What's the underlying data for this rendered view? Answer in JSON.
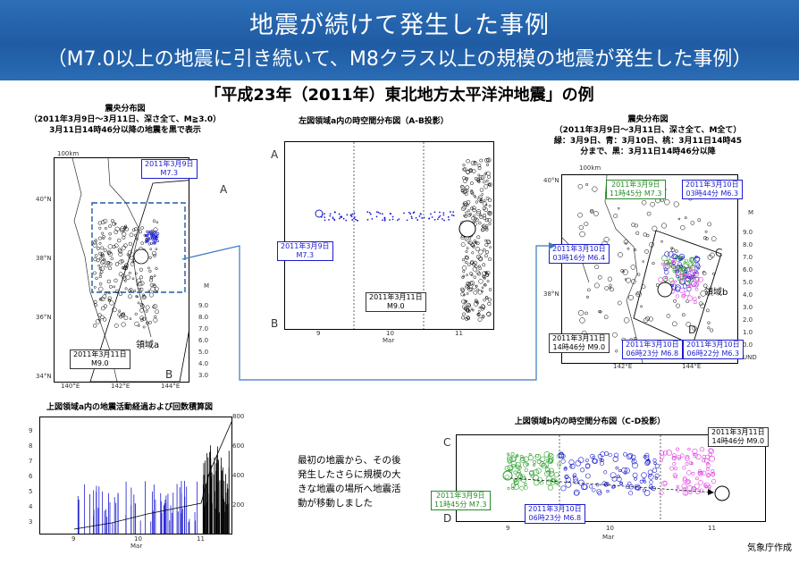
{
  "header": {
    "title": "地震が続けて発生した事例",
    "subtitle": "（M7.0以上の地震に引き続いて、M8クラス以上の規模の地震が発生した事例）"
  },
  "event_title": "「平成23年（2011年）東北地方太平洋沖地震」の例",
  "map_left": {
    "caption_line1": "震央分布図",
    "caption_line2": "（2011年3月9日～3月11日、深さ全て、M≧3.0）",
    "caption_line3": "3月11日14時46分以降の地震を黒で表示",
    "scale": "100km",
    "lat_ticks": [
      "40°N",
      "38°N",
      "36°N",
      "34°N"
    ],
    "lon_ticks": [
      "140°E",
      "142°E",
      "144°E"
    ],
    "label_m73_date": "2011年3月9日",
    "label_m73_mag": "M7.3",
    "label_m90_date": "2011年3月11日",
    "label_m90_mag": "M9.0",
    "region_label": "領域a",
    "point_a": "A",
    "point_b": "B",
    "mag_legend_title": "M",
    "mag_legend": [
      "9.0",
      "8.0",
      "7.0",
      "6.0",
      "5.0",
      "4.0",
      "3.0"
    ]
  },
  "spacetime_ab": {
    "caption": "左図領域a内の時空間分布図（A-B投影）",
    "axis_a": "A",
    "axis_b": "B",
    "x_ticks": [
      "9",
      "10",
      "11"
    ],
    "x_unit": "Mar",
    "label_m73_date": "2011年3月9日",
    "label_m73_mag": "M7.3",
    "label_m90_date": "2011年3月11日",
    "label_m90_mag": "M9.0"
  },
  "map_right": {
    "caption_line1": "震央分布図",
    "caption_line2": "（2011年3月9日～3月11日、深さ全て、M全て）",
    "caption_line3": "緑：3月9日、青：3月10日、桃：3月11日14時45",
    "caption_line4": "分まで、黒：3月11日14時46分以降",
    "scale": "100km",
    "lat_ticks": [
      "40°N",
      "38°N"
    ],
    "lon_ticks": [
      "142°E",
      "144°E"
    ],
    "labels": [
      {
        "date": "2011年3月9日",
        "detail": "11時45分 M7.3"
      },
      {
        "date": "2011年3月10日",
        "detail": "03時44分 M6.3"
      },
      {
        "date": "2011年3月10日",
        "detail": "03時16分 M6.4"
      },
      {
        "date": "2011年3月11日",
        "detail": "14時46分 M9.0"
      },
      {
        "date": "2011年3月10日",
        "detail": "06時23分 M6.8"
      },
      {
        "date": "2011年3月10日",
        "detail": "06時22分 M6.3"
      }
    ],
    "region_label": "領域b",
    "point_c": "C",
    "point_d": "D",
    "mag_legend_title": "M",
    "mag_legend": [
      "9.0",
      "8.0",
      "7.0",
      "6.0",
      "5.0",
      "4.0",
      "3.0",
      "2.0",
      "1.0",
      "0.0",
      "UND"
    ]
  },
  "mt_chart": {
    "caption": "上図領域a内の地震活動経過および回数積算図",
    "y_left": [
      "9",
      "8",
      "7",
      "6",
      "5",
      "4",
      "3"
    ],
    "y_right": [
      "800",
      "600",
      "400",
      "200"
    ],
    "x_ticks": [
      "9",
      "10",
      "11"
    ],
    "x_unit": "Mar"
  },
  "spacetime_cd": {
    "caption": "上図領域b内の時空間分布図（C-D投影）",
    "axis_c": "C",
    "axis_d": "D",
    "x_ticks": [
      "9",
      "10",
      "11"
    ],
    "x_unit": "Mar",
    "labels": [
      {
        "date": "2011年3月11日",
        "detail": "14時46分 M9.0"
      },
      {
        "date": "2011年3月9日",
        "detail": "11時45分 M7.3"
      },
      {
        "date": "2011年3月10日",
        "detail": "06時23分 M6.8"
      }
    ]
  },
  "note": {
    "line1": "最初の地震から、その後",
    "line2": "発生したさらに規模の大",
    "line3": "きな地震の場所へ地震活",
    "line4": "動が移動しました"
  },
  "credit": "気象庁作成",
  "colors": {
    "banner": "#1f5ba3",
    "green": "#2ea02e",
    "blue": "#1c1ccf",
    "pink": "#e040e0",
    "black": "#000000",
    "arrow": "#3a78c2"
  }
}
